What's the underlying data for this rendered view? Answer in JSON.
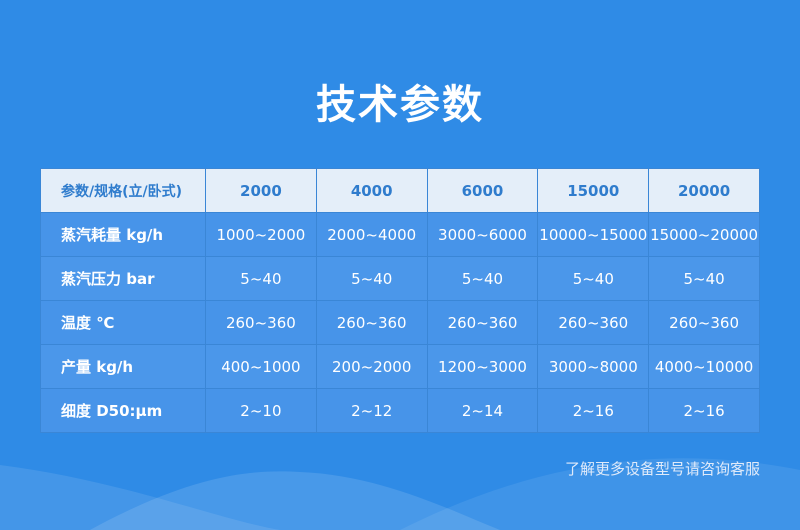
{
  "title": "技术参数",
  "table": {
    "headers": [
      "参数/规格(立/卧式)",
      "2000",
      "4000",
      "6000",
      "15000",
      "20000"
    ],
    "rows": [
      [
        "蒸汽耗量 kg/h",
        "1000~2000",
        "2000~4000",
        "3000~6000",
        "10000~15000",
        "15000~20000"
      ],
      [
        "蒸汽压力 bar",
        "5~40",
        "5~40",
        "5~40",
        "5~40",
        "5~40"
      ],
      [
        "温度 ℃",
        "260~360",
        "260~360",
        "260~360",
        "260~360",
        "260~360"
      ],
      [
        "产量 kg/h",
        "400~1000",
        "200~2000",
        "1200~3000",
        "3000~8000",
        "4000~10000"
      ],
      [
        "细度 D50:μm",
        "2~10",
        "2~12",
        "2~14",
        "2~16",
        "2~16"
      ]
    ]
  },
  "footer_note": "了解更多设备型号请咨询客服",
  "colors": {
    "background": "#2f8be6",
    "header_bg": "#e4eef9",
    "header_text": "#2f7ccd",
    "row_bg": "#4794e9"
  }
}
